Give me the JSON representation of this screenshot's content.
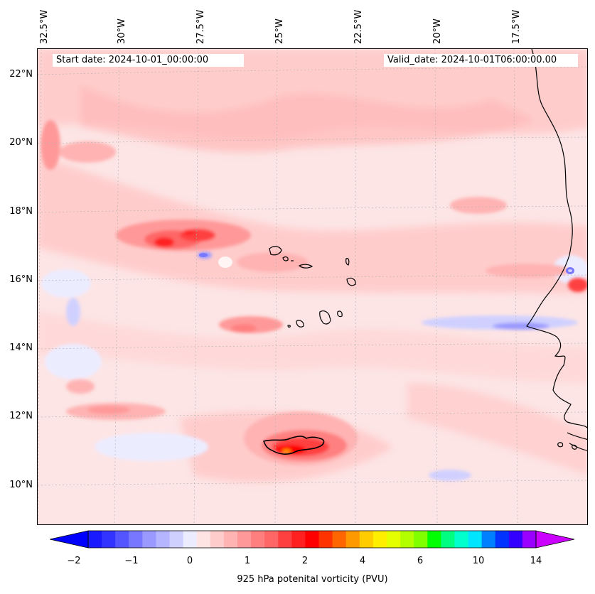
{
  "map": {
    "start_label": "Start date: 2024-10-01_00:00:00",
    "valid_label": "Valid_date: 2024-10-01T06:00:00.00",
    "longitude_labels": [
      "32.5°W",
      "30°W",
      "27.5°W",
      "25°W",
      "22.5°W",
      "20°W",
      "17.5°W"
    ],
    "latitude_labels": [
      "22°N",
      "20°N",
      "18°N",
      "16°N",
      "14°N",
      "12°N",
      "10°N"
    ],
    "colors": {
      "background": "#fde5e5",
      "coastline": "#000000",
      "gridline": "#b0b0b0"
    }
  },
  "colorbar": {
    "label": "925 hPa potenital vorticity (PVU)",
    "tick_labels": [
      "−2",
      "−1",
      "0",
      "1",
      "2",
      "4",
      "6",
      "10",
      "14"
    ],
    "under_color": "#0000ff",
    "over_color": "#cc00ff",
    "colors": [
      "#1a1aff",
      "#3333ff",
      "#5555ff",
      "#7777ff",
      "#9999ff",
      "#b5b5ff",
      "#d0d0ff",
      "#ececff",
      "#ffe4e4",
      "#ffcccc",
      "#ffb3b3",
      "#ff9999",
      "#ff7f7f",
      "#ff6666",
      "#ff4040",
      "#ff2020",
      "#ff0000",
      "#ff3300",
      "#ff6600",
      "#ff9900",
      "#ffcc00",
      "#ffee00",
      "#e5ff00",
      "#b3ff00",
      "#80ff00",
      "#00ff00",
      "#00ff80",
      "#00ffcc",
      "#00e5ff",
      "#0080ff",
      "#0033ff",
      "#3300ff",
      "#9900ff"
    ]
  }
}
